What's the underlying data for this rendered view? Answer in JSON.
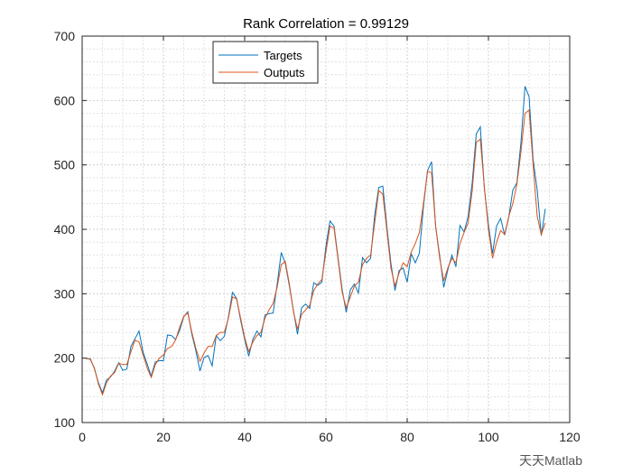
{
  "chart_data": {
    "type": "line",
    "title": "Rank Correlation = 0.99129",
    "xlabel": "",
    "ylabel": "",
    "xlim": [
      0,
      120
    ],
    "ylim": [
      100,
      700
    ],
    "xticks": [
      0,
      20,
      40,
      60,
      80,
      100,
      120
    ],
    "yticks": [
      100,
      200,
      300,
      400,
      500,
      600,
      700
    ],
    "grid": "major and minor, dotted",
    "legend_placement": "top-left",
    "series": [
      {
        "name": "Targets",
        "color": "#0072BD",
        "values": [
          199,
          199,
          184,
          162,
          146,
          166,
          171,
          180,
          193,
          181,
          183,
          218,
          230,
          242,
          209,
          191,
          172,
          194,
          196,
          196,
          236,
          235,
          229,
          243,
          264,
          272,
          237,
          211,
          180,
          201,
          204,
          188,
          235,
          227,
          234,
          264,
          302,
          293,
          259,
          229,
          203,
          229,
          242,
          233,
          267,
          269,
          270,
          315,
          364,
          347,
          312,
          274,
          237,
          278,
          284,
          277,
          317,
          313,
          318,
          374,
          413,
          405,
          355,
          306,
          271,
          306,
          315,
          301,
          356,
          348,
          355,
          422,
          465,
          467,
          404,
          347,
          305,
          336,
          340,
          318,
          362,
          348,
          363,
          435,
          491,
          505,
          404,
          359,
          310,
          337,
          360,
          342,
          406,
          396,
          420,
          472,
          548,
          559,
          463,
          407,
          362,
          405,
          417,
          391,
          419,
          461,
          472,
          535,
          622,
          606,
          508,
          461,
          390,
          432
        ]
      },
      {
        "name": "Outputs",
        "color": "#D95319",
        "values": [
          200,
          198,
          185,
          160,
          143,
          162,
          172,
          178,
          192,
          190,
          190,
          210,
          228,
          225,
          205,
          185,
          170,
          190,
          200,
          205,
          215,
          218,
          228,
          248,
          265,
          270,
          240,
          215,
          195,
          208,
          218,
          218,
          235,
          240,
          240,
          262,
          295,
          292,
          262,
          232,
          210,
          225,
          235,
          240,
          262,
          275,
          285,
          310,
          345,
          350,
          315,
          272,
          245,
          268,
          275,
          282,
          305,
          315,
          322,
          365,
          405,
          402,
          352,
          302,
          278,
          295,
          312,
          318,
          345,
          355,
          360,
          410,
          460,
          455,
          398,
          340,
          312,
          332,
          348,
          342,
          365,
          378,
          395,
          440,
          490,
          488,
          405,
          355,
          320,
          340,
          355,
          348,
          378,
          395,
          410,
          460,
          535,
          540,
          465,
          400,
          355,
          380,
          398,
          392,
          420,
          440,
          470,
          520,
          580,
          585,
          500,
          420,
          392,
          410
        ]
      }
    ]
  },
  "watermark": "天天Matlab"
}
